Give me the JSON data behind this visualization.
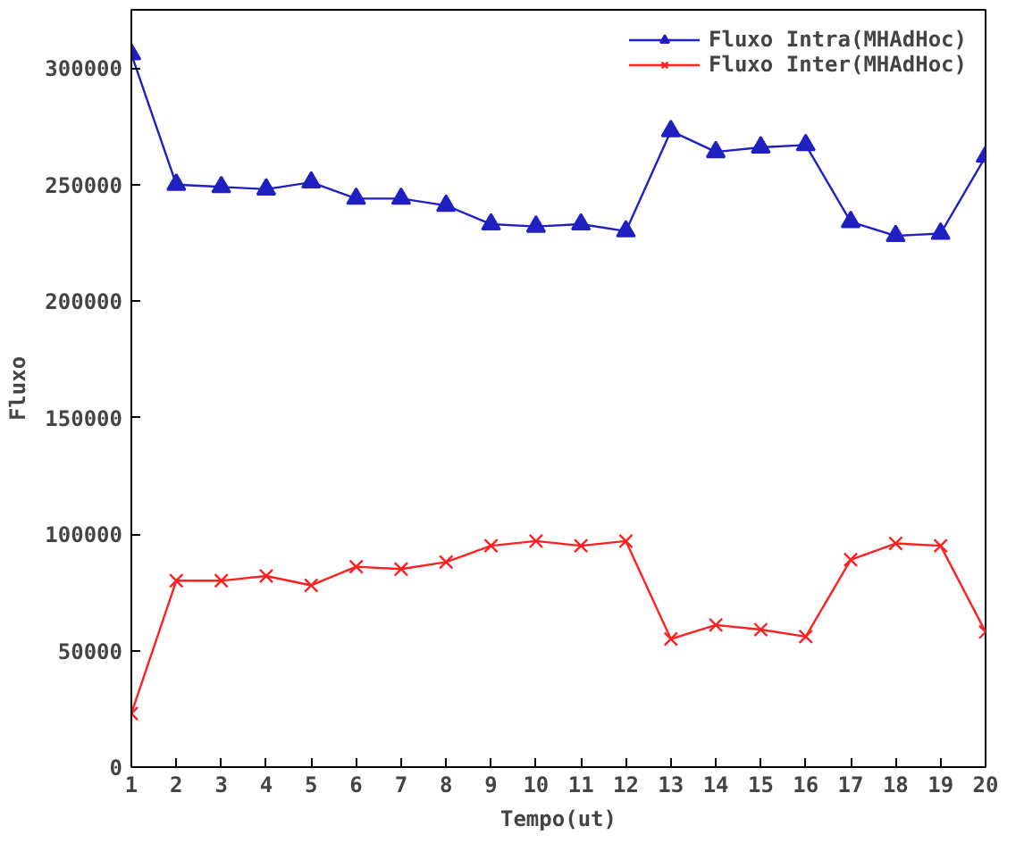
{
  "chart_data": {
    "type": "line",
    "xlabel": "Tempo(ut)",
    "ylabel": "Fluxo",
    "x": [
      1,
      2,
      3,
      4,
      5,
      6,
      7,
      8,
      9,
      10,
      11,
      12,
      13,
      14,
      15,
      16,
      17,
      18,
      19,
      20
    ],
    "series": [
      {
        "name": "Fluxo Intra(MHAdHoc)",
        "color": "#2020c0",
        "marker": "triangle",
        "values": [
          306000,
          250000,
          249000,
          248000,
          251000,
          244000,
          244000,
          241000,
          233000,
          232000,
          233000,
          230000,
          273000,
          264000,
          266000,
          267000,
          234000,
          228000,
          229000,
          262000
        ]
      },
      {
        "name": "Fluxo Inter(MHAdHoc)",
        "color": "#ff2020",
        "marker": "cross",
        "values": [
          23000,
          80000,
          80000,
          82000,
          78000,
          86000,
          85000,
          88000,
          95000,
          97000,
          95000,
          97000,
          55000,
          61000,
          59000,
          56000,
          89000,
          96000,
          95000,
          58000
        ]
      }
    ],
    "xlim": [
      1,
      20
    ],
    "ylim": [
      0,
      325000
    ],
    "xticks": [
      1,
      2,
      3,
      4,
      5,
      6,
      7,
      8,
      9,
      10,
      11,
      12,
      13,
      14,
      15,
      16,
      17,
      18,
      19,
      20
    ],
    "yticks": [
      0,
      50000,
      100000,
      150000,
      200000,
      250000,
      300000
    ],
    "grid": false,
    "legend": "top right",
    "line_style": "solid"
  }
}
